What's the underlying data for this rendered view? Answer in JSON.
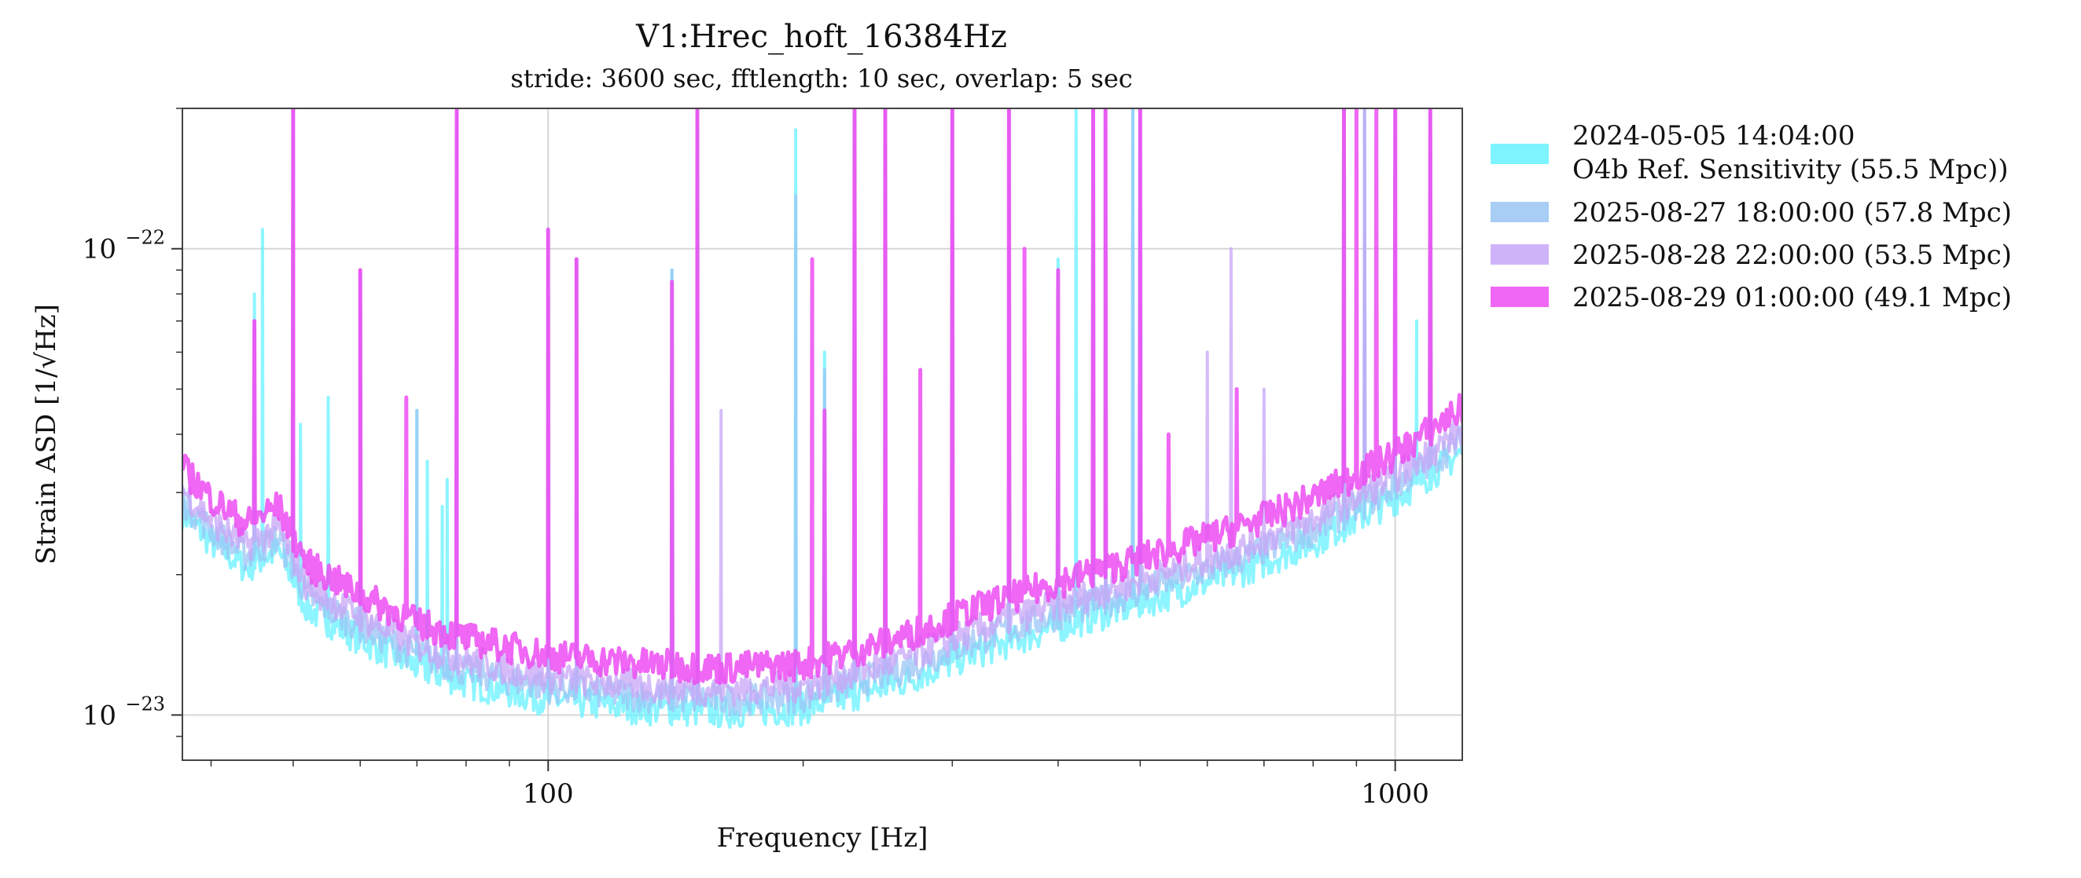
{
  "chart_data": {
    "type": "line",
    "title": "V1:Hrec_hoft_16384Hz",
    "subtitle": "stride: 3600 sec, fftlength: 10 sec, overlap: 5 sec",
    "xlabel": "Frequency [Hz]",
    "ylabel": "Strain ASD [1/√Hz]",
    "x_scale": "log",
    "y_scale": "log",
    "xlim": [
      37,
      1200
    ],
    "ylim": [
      8e-24,
      2e-22
    ],
    "grid": true,
    "legend_position": "outside right, top",
    "x_ticks": [
      {
        "value": 100,
        "label": "100"
      },
      {
        "value": 1000,
        "label": "1000"
      }
    ],
    "y_ticks": [
      {
        "value": 1e-22,
        "label_base": "10",
        "label_exp": "−22"
      },
      {
        "value": 1e-23,
        "label_base": "10",
        "label_exp": "−23"
      }
    ],
    "series": [
      {
        "name_line1": "2024-05-05 14:04:00",
        "name_line2": "O4b Ref. Sensitivity (55.5 Mpc))",
        "color": "#66f2ff",
        "offset": 0.94,
        "spikes": [
          [
            45,
            8e-23
          ],
          [
            46,
            1.1e-22
          ],
          [
            50,
            2e-22
          ],
          [
            51,
            4.2e-23
          ],
          [
            55,
            4.8e-23
          ],
          [
            60,
            9e-23
          ],
          [
            70,
            4.5e-23
          ],
          [
            72,
            3.5e-23
          ],
          [
            75,
            2.8e-23
          ],
          [
            76,
            3.2e-23
          ],
          [
            78,
            2e-22
          ],
          [
            100,
            1.1e-22
          ],
          [
            108,
            9.5e-23
          ],
          [
            140,
            9e-23
          ],
          [
            150,
            2e-22
          ],
          [
            196,
            1.8e-22
          ],
          [
            212,
            6e-23
          ],
          [
            230,
            2e-22
          ],
          [
            250,
            2e-22
          ],
          [
            300,
            2e-22
          ],
          [
            350,
            2e-22
          ],
          [
            400,
            9.5e-23
          ],
          [
            420,
            2e-22
          ],
          [
            440,
            2e-22
          ],
          [
            455,
            2e-22
          ],
          [
            490,
            2e-22
          ],
          [
            500,
            2e-22
          ],
          [
            870,
            2e-22
          ],
          [
            920,
            2e-22
          ],
          [
            1000,
            2e-22
          ],
          [
            1060,
            7e-23
          ],
          [
            1100,
            2e-22
          ]
        ]
      },
      {
        "name_line1": "2025-08-27 18:00:00 (57.8 Mpc)",
        "color": "#99c6f5",
        "offset": 1.0,
        "spikes": [
          [
            45,
            7e-23
          ],
          [
            50,
            2e-22
          ],
          [
            60,
            9e-23
          ],
          [
            70,
            4.5e-23
          ],
          [
            78,
            2e-22
          ],
          [
            100,
            1.1e-22
          ],
          [
            108,
            9.5e-23
          ],
          [
            140,
            9e-23
          ],
          [
            150,
            2e-22
          ],
          [
            196,
            1.3e-22
          ],
          [
            212,
            5.5e-23
          ],
          [
            230,
            2e-22
          ],
          [
            250,
            2e-22
          ],
          [
            300,
            2e-22
          ],
          [
            350,
            2e-22
          ],
          [
            400,
            9e-23
          ],
          [
            440,
            2e-22
          ],
          [
            455,
            2e-22
          ],
          [
            490,
            2e-22
          ],
          [
            500,
            2e-22
          ],
          [
            870,
            2e-22
          ],
          [
            920,
            2e-22
          ],
          [
            1000,
            2e-22
          ],
          [
            1100,
            2e-22
          ]
        ]
      },
      {
        "name_line1": "2025-08-28 22:00:00 (53.5 Mpc)",
        "color": "#c7a6f7",
        "offset": 1.05,
        "spikes": [
          [
            45,
            7e-23
          ],
          [
            50,
            2e-22
          ],
          [
            60,
            9e-23
          ],
          [
            78,
            2e-22
          ],
          [
            100,
            1.1e-22
          ],
          [
            108,
            9.5e-23
          ],
          [
            150,
            2e-22
          ],
          [
            160,
            4.5e-23
          ],
          [
            230,
            2e-22
          ],
          [
            250,
            2e-22
          ],
          [
            300,
            2e-22
          ],
          [
            350,
            2e-22
          ],
          [
            440,
            2e-22
          ],
          [
            455,
            2e-22
          ],
          [
            500,
            2e-22
          ],
          [
            600,
            6e-23
          ],
          [
            640,
            1e-22
          ],
          [
            700,
            5e-23
          ],
          [
            870,
            2e-22
          ],
          [
            920,
            2e-22
          ],
          [
            1000,
            2e-22
          ],
          [
            1100,
            2e-22
          ]
        ]
      },
      {
        "name_line1": "2025-08-29 01:00:00 (49.1 Mpc)",
        "color": "#ec4cf2",
        "offset": 1.17,
        "spikes": [
          [
            45,
            7e-23
          ],
          [
            50,
            2e-22
          ],
          [
            60,
            9e-23
          ],
          [
            68,
            4.8e-23
          ],
          [
            78,
            2e-22
          ],
          [
            100,
            1.1e-22
          ],
          [
            108,
            9.5e-23
          ],
          [
            140,
            8.5e-23
          ],
          [
            150,
            2e-22
          ],
          [
            205,
            9.5e-23
          ],
          [
            212,
            4.5e-23
          ],
          [
            230,
            2e-22
          ],
          [
            250,
            2e-22
          ],
          [
            275,
            5.5e-23
          ],
          [
            300,
            2e-22
          ],
          [
            350,
            2e-22
          ],
          [
            365,
            1e-22
          ],
          [
            400,
            9e-23
          ],
          [
            440,
            2e-22
          ],
          [
            455,
            2e-22
          ],
          [
            500,
            2e-22
          ],
          [
            540,
            4e-23
          ],
          [
            650,
            5e-23
          ],
          [
            870,
            2e-22
          ],
          [
            900,
            2e-22
          ],
          [
            950,
            2e-22
          ],
          [
            1000,
            2e-22
          ],
          [
            1100,
            2e-22
          ]
        ]
      }
    ]
  }
}
